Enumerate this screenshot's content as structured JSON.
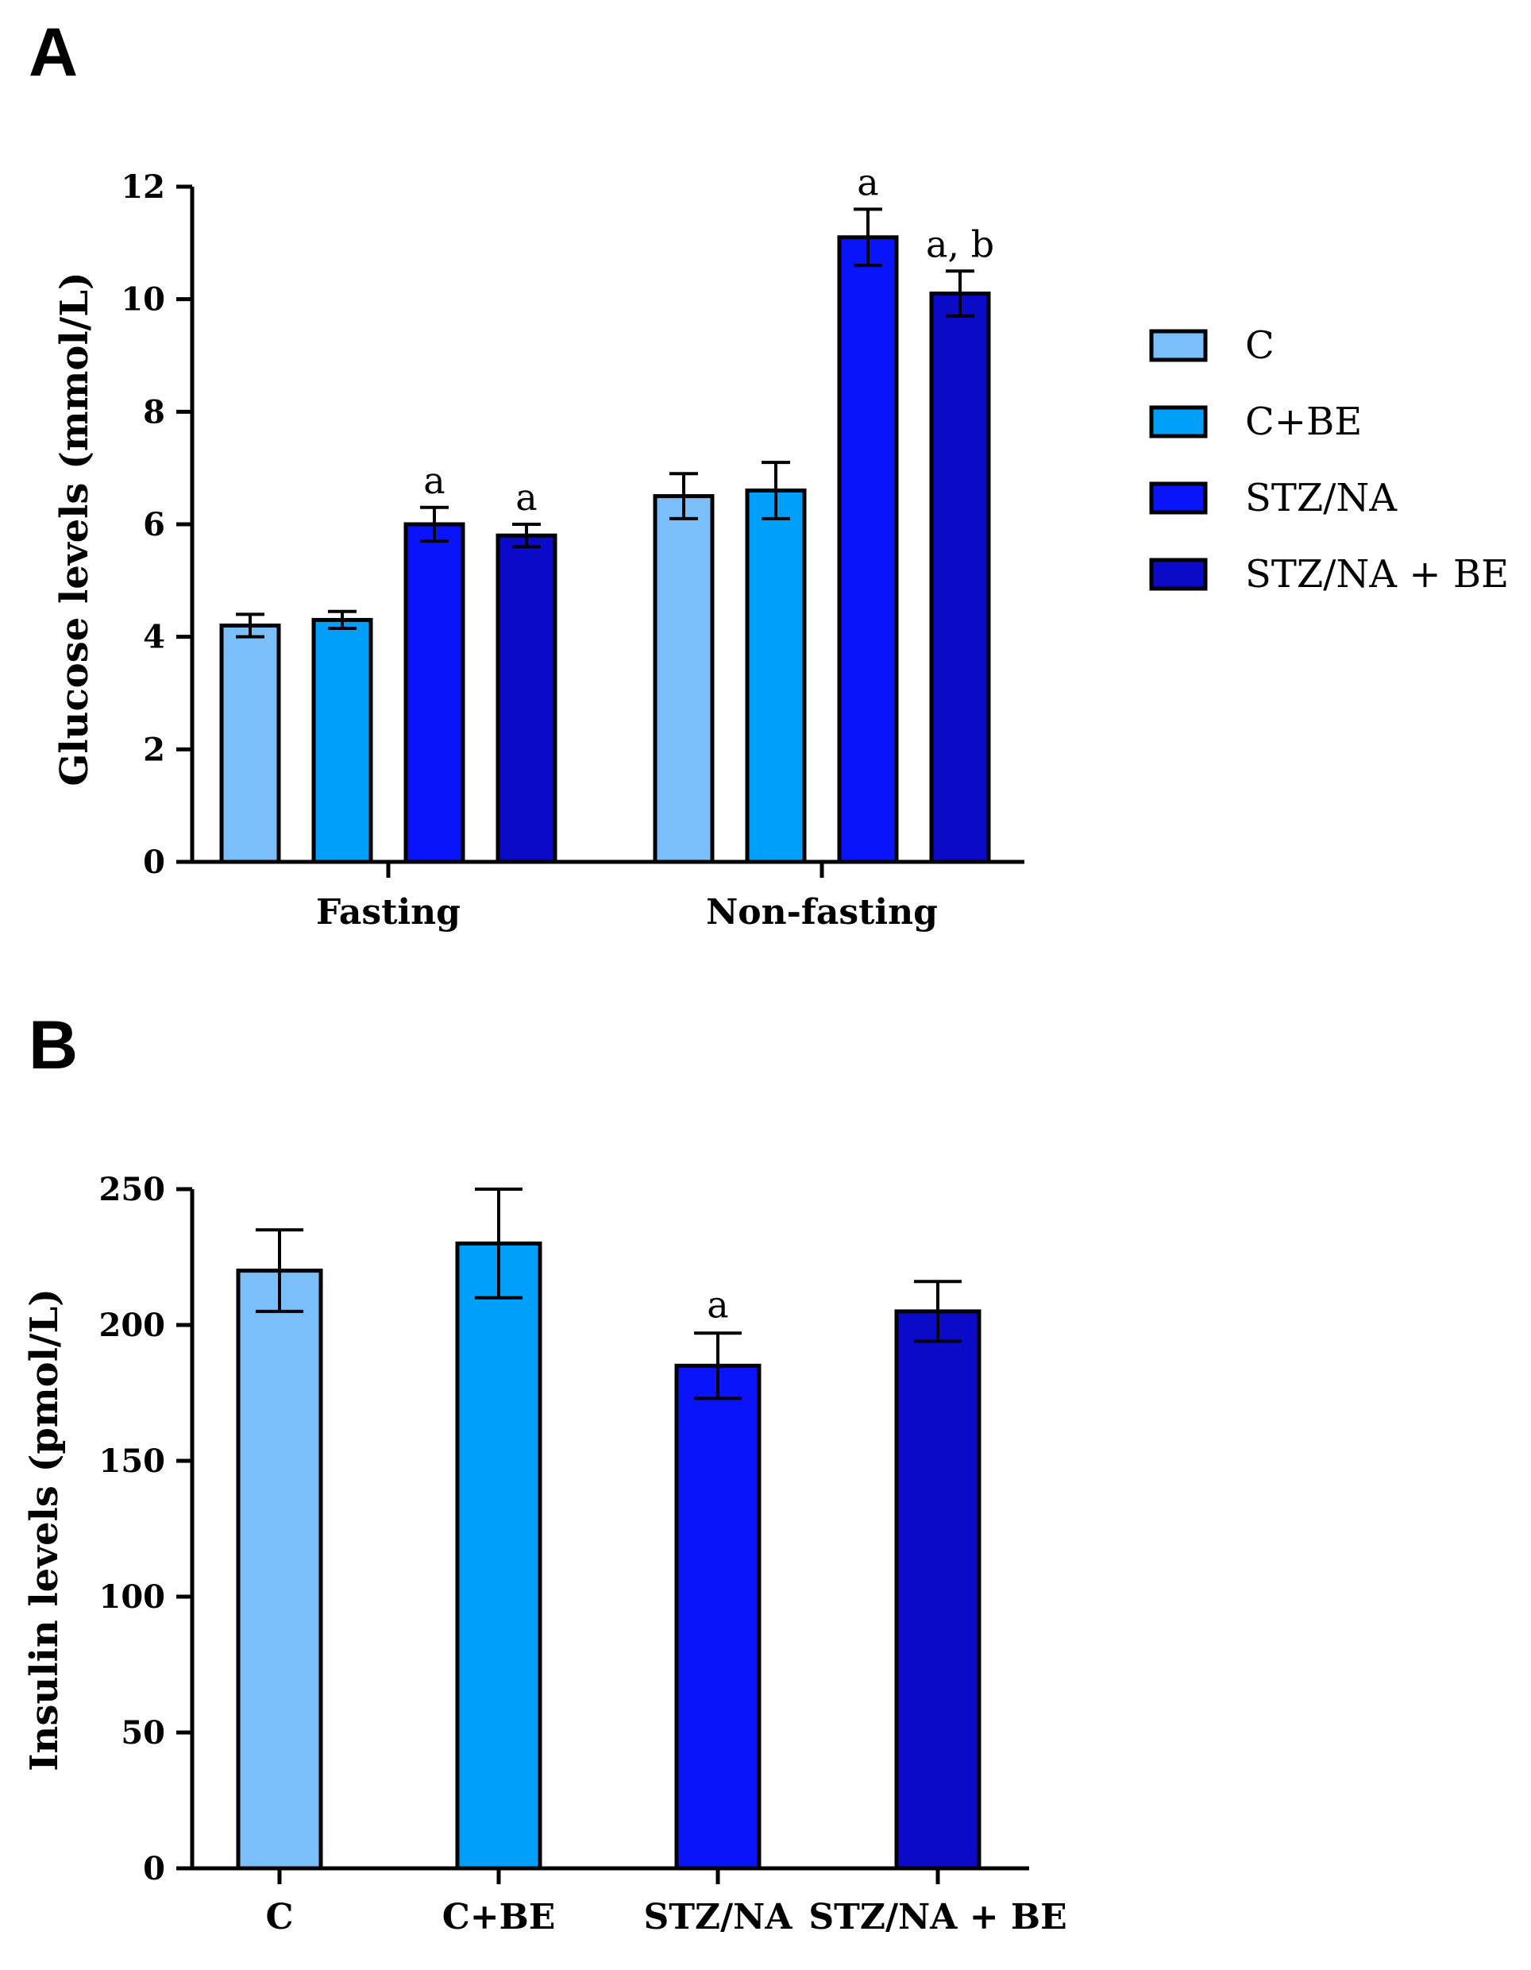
{
  "chart_data": [
    {
      "panel": "A",
      "type": "bar",
      "title": "",
      "xlabel": "",
      "ylabel": "Glucose levels  (mmol/L)",
      "ylim": [
        0,
        12
      ],
      "yticks": [
        0,
        2,
        4,
        6,
        8,
        10,
        12
      ],
      "categories": [
        "Fasting",
        "Non-fasting"
      ],
      "series": [
        {
          "name": "C",
          "color": "#7ABFFA",
          "values": [
            4.2,
            6.5
          ],
          "errors": [
            0.2,
            0.4
          ],
          "annotations": [
            "",
            ""
          ]
        },
        {
          "name": "C+BE",
          "color": "#00A0FA",
          "values": [
            4.3,
            6.6
          ],
          "errors": [
            0.15,
            0.5
          ],
          "annotations": [
            "",
            ""
          ]
        },
        {
          "name": "STZ/NA",
          "color": "#0A14FA",
          "values": [
            6.0,
            11.1
          ],
          "errors": [
            0.3,
            0.5
          ],
          "annotations": [
            "a",
            "a"
          ]
        },
        {
          "name": "STZ/NA + BE",
          "color": "#0A0AC8",
          "values": [
            5.8,
            10.1
          ],
          "errors": [
            0.2,
            0.4
          ],
          "annotations": [
            "a",
            "a, b"
          ]
        }
      ],
      "legend": {
        "placement": "right",
        "entries": [
          {
            "label": "C",
            "color": "#7ABFFA"
          },
          {
            "label": "C+BE",
            "color": "#00A0FA"
          },
          {
            "label": "STZ/NA",
            "color": "#0A14FA"
          },
          {
            "label": "STZ/NA + BE",
            "color": "#0A0AC8"
          }
        ]
      }
    },
    {
      "panel": "B",
      "type": "bar",
      "title": "",
      "xlabel": "",
      "ylabel": "Insulin levels  (pmol/L)",
      "ylim": [
        0,
        250
      ],
      "yticks": [
        0,
        50,
        100,
        150,
        200,
        250
      ],
      "categories": [
        "C",
        "C+BE",
        "STZ/NA",
        "STZ/NA + BE"
      ],
      "colors": [
        "#7ABFFA",
        "#00A0FA",
        "#0A14FA",
        "#0A0AC8"
      ],
      "values": [
        220,
        230,
        185,
        205
      ],
      "errors": [
        15,
        20,
        12,
        11
      ],
      "annotations": [
        "",
        "",
        "a",
        ""
      ]
    }
  ]
}
